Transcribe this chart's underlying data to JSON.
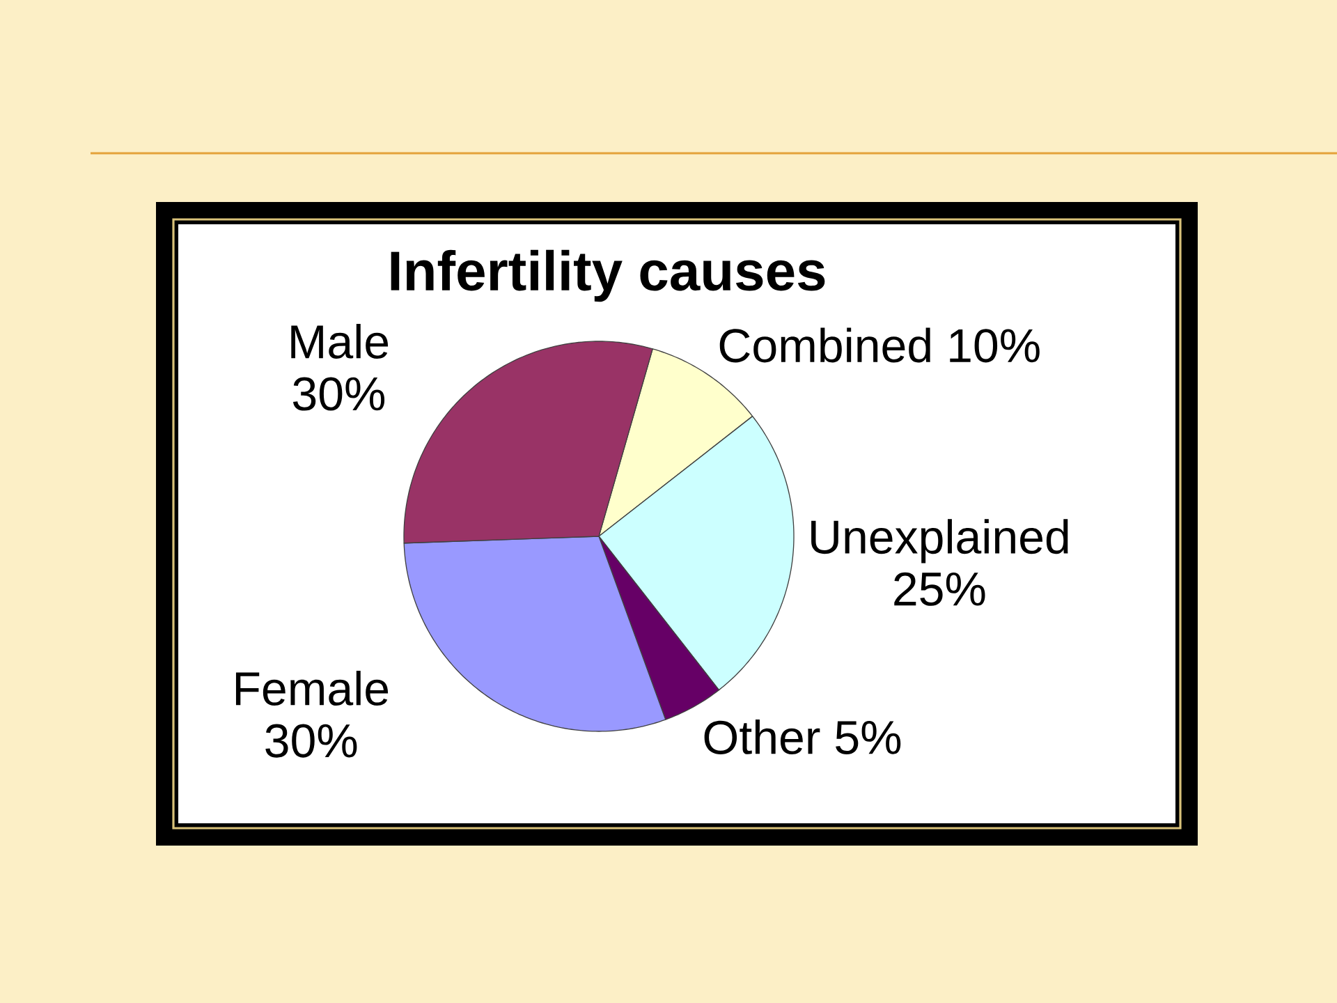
{
  "chart_data": {
    "type": "pie",
    "title": "Infertility causes",
    "categories": [
      "Combined",
      "Unexplained",
      "Other",
      "Female",
      "Male"
    ],
    "values": [
      10,
      25,
      5,
      30,
      30
    ],
    "value_labels": [
      "10%",
      "25%",
      "5%",
      "30%",
      "30%"
    ],
    "colors": [
      "#ffffcc",
      "#ccffff",
      "#660066",
      "#9999ff",
      "#993366"
    ]
  }
}
